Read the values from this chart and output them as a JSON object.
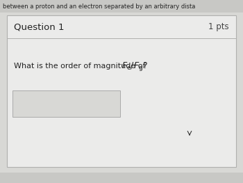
{
  "top_text": "between a proton and an electron separated by an arbitrary dista",
  "question_label": "Question 1",
  "pts_label": "1 pts",
  "question_text_plain": "What is the order of magnitude of ",
  "question_math": "$\\mathit{F}_\\mathrm{e}/\\mathit{F}_\\mathrm{g}$?",
  "bg_color": "#d8d8d5",
  "top_strip_bg": "#c8c8c5",
  "card_bg": "#ebebea",
  "card_border": "#b0b0ae",
  "input_box_bg": "#d8d8d5",
  "input_box_border": "#aaaaaa",
  "text_color": "#222222",
  "pts_color": "#444444",
  "bottom_strip_bg": "#c8c8c5"
}
